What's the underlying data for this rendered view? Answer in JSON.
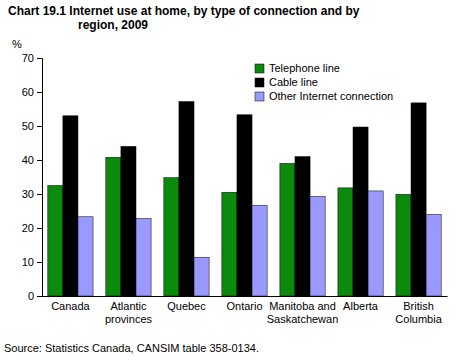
{
  "chart_data": {
    "type": "bar",
    "title": "Chart 19.1 Internet use at home, by type of connection and by\nregion, 2009",
    "y_label": "%",
    "source": "Source: Statistics Canada, CANSIM table 358-0134.",
    "categories": [
      "Canada",
      "Atlantic\nprovinces",
      "Quebec",
      "Ontario",
      "Manitoba and\nSaskatchewan",
      "Alberta",
      "British\nColumbia"
    ],
    "series": [
      {
        "name": "Telephone line",
        "color": "#0b8a0b",
        "values": [
          32.5,
          40.8,
          34.8,
          30.5,
          39,
          31.8,
          29.9
        ]
      },
      {
        "name": "Cable line",
        "color": "#000000",
        "values": [
          53,
          44,
          57.2,
          53.3,
          41,
          49.7,
          56.8
        ]
      },
      {
        "name": "Other Internet connection",
        "color": "#9999ff",
        "values": [
          23.3,
          22.8,
          11.4,
          26.7,
          29.3,
          30.9,
          24
        ]
      }
    ],
    "ylim": [
      0,
      70
    ],
    "yticks": [
      0,
      10,
      20,
      30,
      40,
      50,
      60,
      70
    ],
    "grid": false,
    "legend": "top-right"
  }
}
